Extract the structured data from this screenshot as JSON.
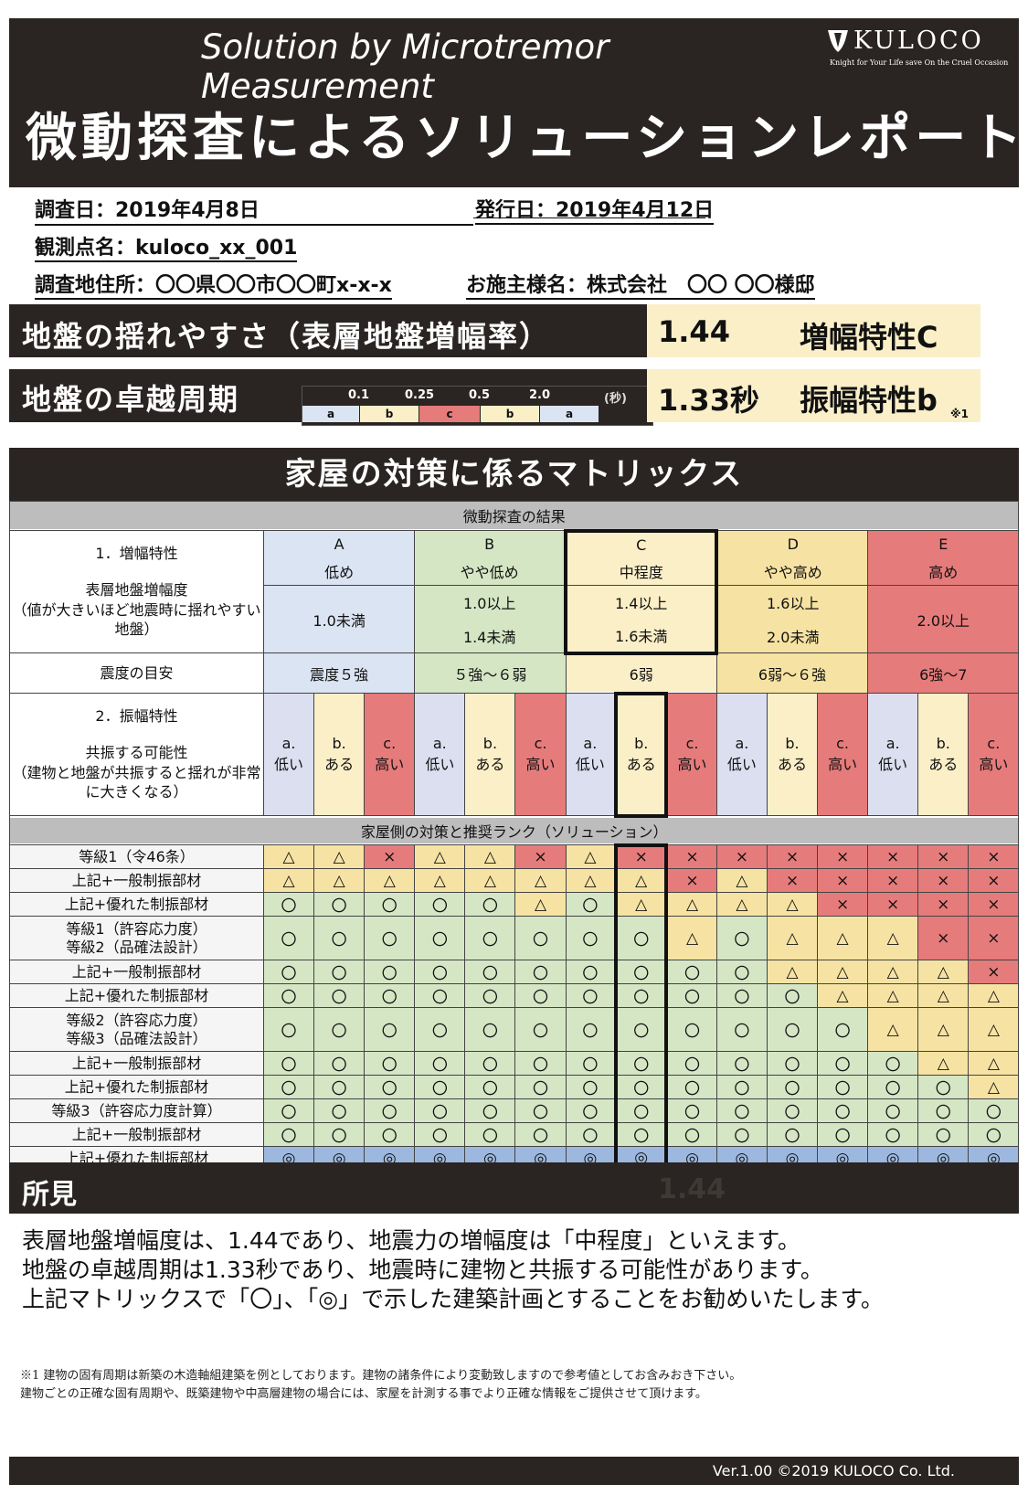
{
  "header": {
    "subtitle": "Solution by Microtremor Measurement",
    "title": "微動探査によるソリューションレポート",
    "logo_text": "KULOCO",
    "logo_tagline": "Knight for Your Life save On the Cruel Occasion",
    "logo_icon": "shield-icon"
  },
  "info": {
    "survey_date": "調査日：2019年4月8日",
    "issue_date": "発行日：2019年4月12日",
    "point_name": "観測点名：kuloco_xx_001",
    "address": "調査地住所：〇〇県〇〇市〇〇町x-x-x",
    "client": "お施主様名：株式会社　〇〇 〇〇様邸"
  },
  "results": {
    "amp_label": "地盤の揺れやすさ（表層地盤増幅率）",
    "amp_value": "1.44",
    "amp_char": "増幅特性C",
    "period_label": "地盤の卓越周期",
    "period_value": "1.33秒",
    "period_char": "振幅特性b",
    "period_note": "※1",
    "scale_ticks": [
      "0.1",
      "0.25",
      "0.5",
      "2.0"
    ],
    "scale_unit": "(秒)",
    "scale_segments": [
      "a",
      "b",
      "c",
      "b",
      "a"
    ]
  },
  "matrix": {
    "title": "家屋の対策に係るマトリックス",
    "section1": "微動探査の結果",
    "amp_heading": "1．増幅特性",
    "amp_desc": "表層地盤増幅度\n（値が大きいほど地震時に揺れやすい地盤）",
    "letters": [
      "A",
      "B",
      "C",
      "D",
      "E"
    ],
    "levels": [
      "低め",
      "やや低め",
      "中程度",
      "やや高め",
      "高め"
    ],
    "ranges": [
      {
        "top": "1.0未満",
        "bottom": ""
      },
      {
        "top": "1.0以上",
        "bottom": "1.4未満"
      },
      {
        "top": "1.4以上",
        "bottom": "1.6未満"
      },
      {
        "top": "1.6以上",
        "bottom": "2.0未満"
      },
      {
        "top": "2.0以上",
        "bottom": ""
      }
    ],
    "intensity_label": "震度の目安",
    "intensities": [
      "震度５強",
      "５強〜６弱",
      "6弱",
      "6弱〜６強",
      "6強〜7"
    ],
    "vib_heading": "2．振幅特性",
    "vib_desc": "共振する可能性\n（建物と地盤が共振すると揺れが非常に大きくなる）",
    "vib_codes": [
      "a.",
      "b.",
      "c."
    ],
    "vib_words": [
      "低い",
      "ある",
      "高い"
    ],
    "section2": "家屋側の対策と推奨ランク（ソリューション）",
    "rows": [
      {
        "label": "等級1（令46条）",
        "cells": [
          "△",
          "△",
          "×",
          "△",
          "△",
          "×",
          "△",
          "×",
          "×",
          "×",
          "×",
          "×",
          "×",
          "×",
          "×"
        ]
      },
      {
        "label": "上記+一般制振部材",
        "cells": [
          "△",
          "△",
          "△",
          "△",
          "△",
          "△",
          "△",
          "△",
          "×",
          "△",
          "×",
          "×",
          "×",
          "×",
          "×"
        ]
      },
      {
        "label": "上記+優れた制振部材",
        "cells": [
          "〇",
          "〇",
          "〇",
          "〇",
          "〇",
          "△",
          "〇",
          "△",
          "△",
          "△",
          "△",
          "×",
          "×",
          "×",
          "×"
        ]
      },
      {
        "label": "等級1（許容応力度）\n等級2（品確法設計）",
        "cells": [
          "〇",
          "〇",
          "〇",
          "〇",
          "〇",
          "〇",
          "〇",
          "〇",
          "△",
          "〇",
          "△",
          "△",
          "△",
          "×",
          "×"
        ]
      },
      {
        "label": "上記+一般制振部材",
        "cells": [
          "〇",
          "〇",
          "〇",
          "〇",
          "〇",
          "〇",
          "〇",
          "〇",
          "〇",
          "〇",
          "△",
          "△",
          "△",
          "△",
          "×"
        ]
      },
      {
        "label": "上記+優れた制振部材",
        "cells": [
          "〇",
          "〇",
          "〇",
          "〇",
          "〇",
          "〇",
          "〇",
          "〇",
          "〇",
          "〇",
          "〇",
          "△",
          "△",
          "△",
          "△"
        ]
      },
      {
        "label": "等級2（許容応力度）\n等級3（品確法設計）",
        "cells": [
          "〇",
          "〇",
          "〇",
          "〇",
          "〇",
          "〇",
          "〇",
          "〇",
          "〇",
          "〇",
          "〇",
          "〇",
          "△",
          "△",
          "△"
        ]
      },
      {
        "label": "上記+一般制振部材",
        "cells": [
          "〇",
          "〇",
          "〇",
          "〇",
          "〇",
          "〇",
          "〇",
          "〇",
          "〇",
          "〇",
          "〇",
          "〇",
          "〇",
          "△",
          "△"
        ]
      },
      {
        "label": "上記+優れた制振部材",
        "cells": [
          "〇",
          "〇",
          "〇",
          "〇",
          "〇",
          "〇",
          "〇",
          "〇",
          "〇",
          "〇",
          "〇",
          "〇",
          "〇",
          "〇",
          "△"
        ]
      },
      {
        "label": "等級3（許容応力度計算）",
        "cells": [
          "〇",
          "〇",
          "〇",
          "〇",
          "〇",
          "〇",
          "〇",
          "〇",
          "〇",
          "〇",
          "〇",
          "〇",
          "〇",
          "〇",
          "〇"
        ]
      },
      {
        "label": "上記+一般制振部材",
        "cells": [
          "〇",
          "〇",
          "〇",
          "〇",
          "〇",
          "〇",
          "〇",
          "〇",
          "〇",
          "〇",
          "〇",
          "〇",
          "〇",
          "〇",
          "〇"
        ]
      },
      {
        "label": "上記+優れた制振部材",
        "cells": [
          "◎",
          "◎",
          "◎",
          "◎",
          "◎",
          "◎",
          "◎",
          "◎",
          "◎",
          "◎",
          "◎",
          "◎",
          "◎",
          "◎",
          "◎"
        ]
      }
    ]
  },
  "findings": {
    "label": "所見",
    "value": "1.44",
    "lines": [
      "表層地盤増幅度は、1.44であり、地震力の増幅度は「中程度」といえます。",
      "地盤の卓越周期は1.33秒であり、地震時に建物と共振する可能性があります。",
      "上記マトリックスで「〇」、「◎」で示した建築計画とすることをお勧めいたします。"
    ],
    "note1": "※1 建物の固有周期は新築の木造軸組建築を例としております。建物の諸条件により変動致しますので参考値としてお含みおき下さい。",
    "note2": "建物ごとの正確な固有周期や、既築建物や中高層建物の場合には、家屋を計測する事でより正確な情報をご提供させて頂けます。"
  },
  "footer": {
    "text": "Ver.1.00  ©2019 KULOCO Co. Ltd."
  },
  "colors": {
    "dark": "#2a2422",
    "cream": "#fbefc8",
    "green": "#d5e6c5",
    "yellow": "#f6e3a3",
    "red": "#e67b7b",
    "blue": "#9db8df"
  }
}
